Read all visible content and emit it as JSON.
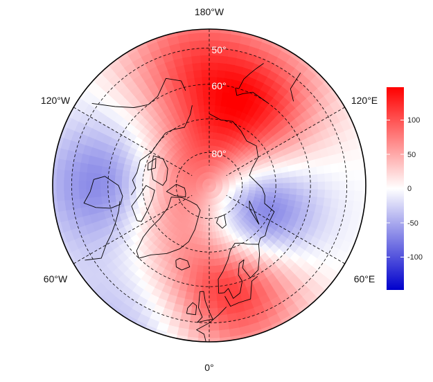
{
  "map": {
    "projection": "north-polar-stereographic",
    "meridian_labels": {
      "top": "180°W",
      "bottom": "0°",
      "upper_left": "120°W",
      "upper_right": "120°E",
      "lower_left": "60°W",
      "lower_right": "60°E"
    },
    "latitude_labels": [
      "50°",
      "60°",
      "80°"
    ],
    "grid": true,
    "coastlines": true,
    "border_color": "#000000",
    "anomaly_centers": [
      {
        "lon": 15,
        "lat": 60,
        "value": 140
      },
      {
        "lon": 150,
        "lat": 62,
        "value": 110
      },
      {
        "lon": -170,
        "lat": 52,
        "value": 80
      },
      {
        "lon": -50,
        "lat": 80,
        "value": 80
      },
      {
        "lon": 180,
        "lat": 82,
        "value": 60
      },
      {
        "lon": -90,
        "lat": 60,
        "value": -80
      },
      {
        "lon": 50,
        "lat": 75,
        "value": -140
      },
      {
        "lon": -30,
        "lat": 42,
        "value": -40
      }
    ]
  },
  "colorbar": {
    "ticks": [
      "100",
      "50",
      "0",
      "-50",
      "-100"
    ],
    "min": -145,
    "max": 145,
    "colors": {
      "high": "#ff0000",
      "mid": "#ffffff",
      "low": "#0000cc"
    }
  }
}
